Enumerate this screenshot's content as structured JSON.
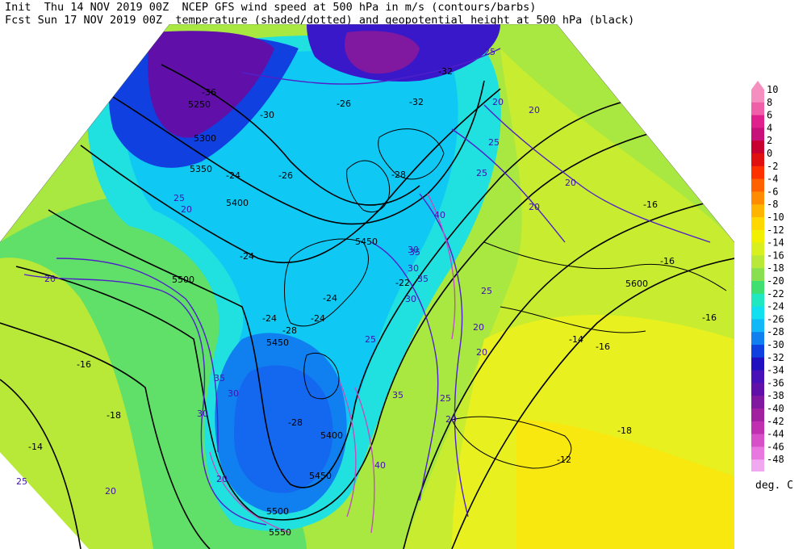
{
  "header": {
    "line1": "Init  Thu 14 NOV 2019 00Z  NCEP GFS wind speed at 500 hPa in m/s (contours/barbs)",
    "line2": "Fcst Sun 17 NOV 2019 00Z  temperature (shaded/dotted) and geopotential height at 500 hPa (black)"
  },
  "colorbar": {
    "unit": "deg. C",
    "levels": [
      {
        "label": "10",
        "color": "#f48fbf"
      },
      {
        "label": "8",
        "color": "#f060a8"
      },
      {
        "label": "6",
        "color": "#e0208c"
      },
      {
        "label": "4",
        "color": "#c8107a"
      },
      {
        "label": "2",
        "color": "#c80030"
      },
      {
        "label": "0",
        "color": "#e01010"
      },
      {
        "label": "-2",
        "color": "#ff3000"
      },
      {
        "label": "-4",
        "color": "#ff6000"
      },
      {
        "label": "-6",
        "color": "#ff8c00"
      },
      {
        "label": "-8",
        "color": "#ffb400"
      },
      {
        "label": "-10",
        "color": "#ffd800"
      },
      {
        "label": "-12",
        "color": "#f0f000"
      },
      {
        "label": "-14",
        "color": "#d8f020"
      },
      {
        "label": "-16",
        "color": "#b8e838"
      },
      {
        "label": "-18",
        "color": "#88e050"
      },
      {
        "label": "-20",
        "color": "#40e070"
      },
      {
        "label": "-22",
        "color": "#20e8c0"
      },
      {
        "label": "-24",
        "color": "#10e0f0"
      },
      {
        "label": "-26",
        "color": "#10b8f8"
      },
      {
        "label": "-28",
        "color": "#1080f0"
      },
      {
        "label": "-30",
        "color": "#1040e0"
      },
      {
        "label": "-32",
        "color": "#2010c0"
      },
      {
        "label": "-34",
        "color": "#4810b8"
      },
      {
        "label": "-36",
        "color": "#6010a8"
      },
      {
        "label": "-38",
        "color": "#8018a0"
      },
      {
        "label": "-40",
        "color": "#a020a0"
      },
      {
        "label": "-42",
        "color": "#c030b0"
      },
      {
        "label": "-44",
        "color": "#d850c8"
      },
      {
        "label": "-46",
        "color": "#e878e0"
      },
      {
        "label": "-48",
        "color": "#f0a8f0"
      }
    ]
  },
  "map_labels": {
    "height": [
      "5250",
      "5300",
      "5350",
      "5400",
      "5500",
      "5450",
      "5450",
      "5400",
      "5450",
      "5500",
      "5550",
      "5600"
    ],
    "wind": [
      "25",
      "20",
      "20",
      "25",
      "20",
      "20",
      "25",
      "20",
      "25",
      "20",
      "30",
      "40",
      "35",
      "30",
      "35",
      "30",
      "25",
      "25",
      "20",
      "20",
      "25",
      "20",
      "30",
      "35",
      "40",
      "20",
      "25",
      "35",
      "30",
      "20"
    ],
    "temp": [
      "-36",
      "-32",
      "-26",
      "-30",
      "-32",
      "-28",
      "-24",
      "-26",
      "-24",
      "-24",
      "-28",
      "-24",
      "-22",
      "-24",
      "-16",
      "-16",
      "-16",
      "-14",
      "-16",
      "-12",
      "-16",
      "-18",
      "-14",
      "-18",
      "-28"
    ]
  }
}
